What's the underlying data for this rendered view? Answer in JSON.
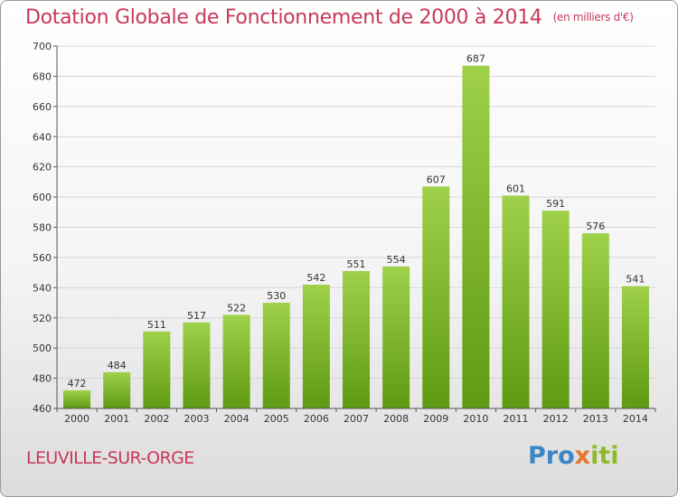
{
  "header": {
    "title": "Dotation Globale de Fonctionnement de 2000 à 2014",
    "unit": "(en milliers d'€)"
  },
  "footer": {
    "city": "LEUVILLE-SUR-ORGE",
    "logo_parts": [
      "Pro",
      "x",
      "iti"
    ]
  },
  "colors": {
    "title": "#c8385a",
    "bar_top": "#9fd14a",
    "bar_bottom": "#5e9a12"
  },
  "chart_data": {
    "type": "bar",
    "title": "Dotation Globale de Fonctionnement de 2000 à 2014",
    "subtitle": "(en milliers d'€)",
    "xlabel": "",
    "ylabel": "",
    "categories": [
      "2000",
      "2001",
      "2002",
      "2003",
      "2004",
      "2005",
      "2006",
      "2007",
      "2008",
      "2009",
      "2010",
      "2011",
      "2012",
      "2013",
      "2014"
    ],
    "values": [
      472,
      484,
      511,
      517,
      522,
      530,
      542,
      551,
      554,
      607,
      687,
      601,
      591,
      576,
      541
    ],
    "ylim": [
      460,
      700
    ],
    "yticks": [
      460,
      480,
      500,
      520,
      540,
      560,
      580,
      600,
      620,
      640,
      660,
      680,
      700
    ],
    "grid": true,
    "legend": "none"
  }
}
